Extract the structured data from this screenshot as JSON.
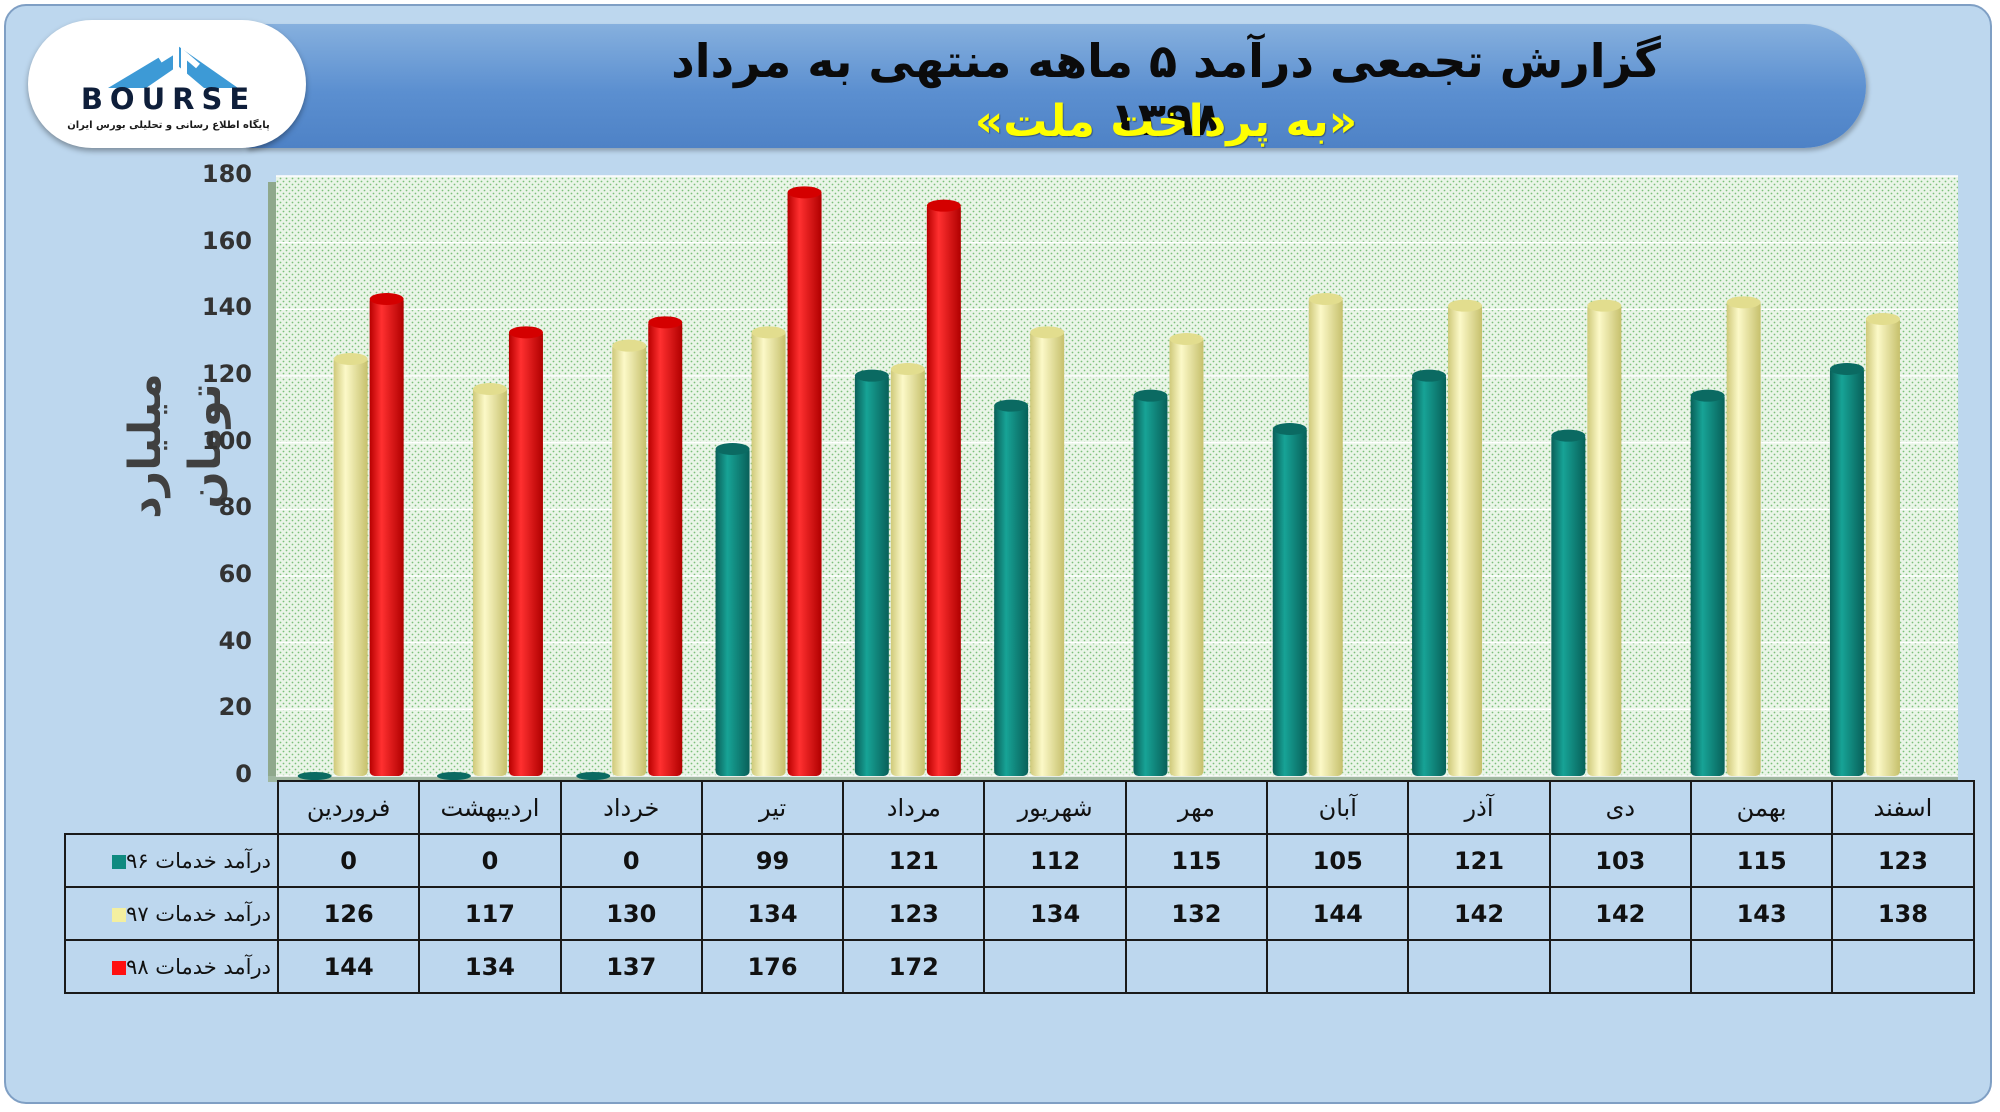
{
  "header": {
    "title": "گزارش تجمعی درآمد ۵ ماهه منتهی به مرداد ۱۳۹۸",
    "subtitle": "«به پرداخت ملت»"
  },
  "logo": {
    "text": "BOURSE",
    "subtext": "پایگاه اطلاع رسانی و تحلیلی بورس ایران"
  },
  "colors": {
    "series_96": "#0f8a80",
    "series_97": "#f3efa0",
    "series_98": "#ff1010",
    "background": "#bdd7ee",
    "banner": "#5b8fd0"
  },
  "chart_data": {
    "type": "bar",
    "title": "گزارش تجمعی درآمد ۵ ماهه منتهی به مرداد ۱۳۹۸",
    "subtitle": "«به پرداخت ملت»",
    "ylabel": "میلیارد تومان",
    "xlabel": "",
    "ylim": [
      0,
      180
    ],
    "yticks": [
      0,
      20,
      40,
      60,
      80,
      100,
      120,
      140,
      160,
      180
    ],
    "grid": true,
    "categories": [
      "فروردین",
      "اردیبهشت",
      "خرداد",
      "تیر",
      "مرداد",
      "شهریور",
      "مهر",
      "آبان",
      "آذر",
      "دی",
      "بهمن",
      "اسفند"
    ],
    "series": [
      {
        "name": "درآمد خدمات ۹۶",
        "color": "#0f8a80",
        "values": [
          0,
          0,
          0,
          99,
          121,
          112,
          115,
          105,
          121,
          103,
          115,
          123
        ]
      },
      {
        "name": "درآمد خدمات ۹۷",
        "color": "#f3efa0",
        "values": [
          126,
          117,
          130,
          134,
          123,
          134,
          132,
          144,
          142,
          142,
          143,
          138
        ]
      },
      {
        "name": "درآمد خدمات ۹۸",
        "color": "#ff1010",
        "values": [
          144,
          134,
          137,
          176,
          172,
          null,
          null,
          null,
          null,
          null,
          null,
          null
        ]
      }
    ],
    "data_table": true
  }
}
